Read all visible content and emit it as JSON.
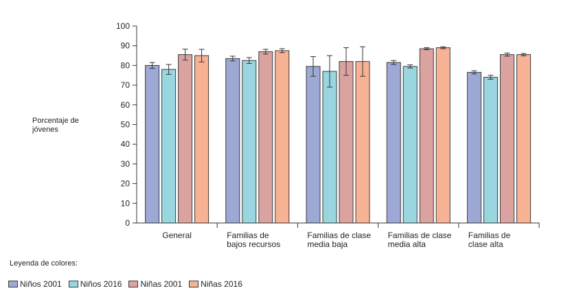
{
  "chart_data": {
    "type": "bar",
    "ylabel": "Porcentaje de jóvenes",
    "ylim": [
      0,
      100
    ],
    "yticks": [
      0,
      10,
      20,
      30,
      40,
      50,
      60,
      70,
      80,
      90,
      100
    ],
    "categories": [
      [
        "General"
      ],
      [
        "Familias de",
        "bajos recursos"
      ],
      [
        "Familias de clase",
        "media baja"
      ],
      [
        "Familias de clase",
        "media alta"
      ],
      [
        "Familias de",
        "clase alta"
      ]
    ],
    "series": [
      {
        "name": "Niños 2001",
        "color": "#9ea8d4",
        "values": [
          80,
          83.5,
          79.5,
          81.5,
          76.5
        ],
        "errors": [
          1.5,
          1.2,
          5.0,
          1.0,
          0.8
        ]
      },
      {
        "name": "Niños 2016",
        "color": "#99d6e0",
        "values": [
          78,
          82.5,
          77,
          79.5,
          74
        ],
        "errors": [
          2.5,
          1.5,
          8.0,
          0.8,
          1.0
        ]
      },
      {
        "name": "Niñas 2001",
        "color": "#dba3a0",
        "values": [
          85.5,
          87,
          82,
          88.5,
          85.5
        ],
        "errors": [
          2.8,
          1.2,
          7.0,
          0.5,
          0.8
        ]
      },
      {
        "name": "Niñas 2016",
        "color": "#f6b293",
        "values": [
          85,
          87.5,
          82,
          89,
          85.5
        ],
        "errors": [
          3.2,
          1.0,
          7.5,
          0.5,
          0.6
        ]
      }
    ],
    "legend_title": "Leyenda de colores:",
    "legend_position": "bottom-left",
    "grid": false
  }
}
